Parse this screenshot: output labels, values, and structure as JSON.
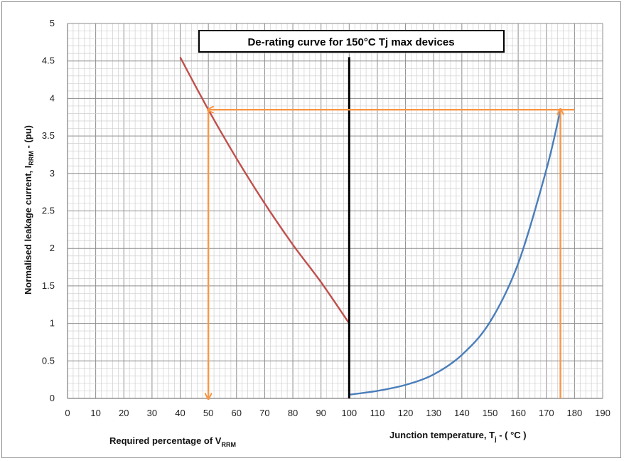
{
  "chart_data": {
    "type": "line",
    "title": "De-rating curve for 150°C Tj max devices",
    "ylabel": "Normalised leakage current, I",
    "ylabel_sub": "RRM",
    "ylabel_tail": " - (pu)",
    "xlabel_left": "Required percentage of V",
    "xlabel_left_sub": "RRM",
    "xlabel_right": "Junction temperature, T",
    "xlabel_right_sub": "j",
    "xlabel_right_tail": " - ( °C )",
    "xlim": [
      0,
      190
    ],
    "ylim": [
      0,
      5
    ],
    "x_ticks": [
      "0",
      "10",
      "20",
      "30",
      "40",
      "50",
      "60",
      "70",
      "80",
      "90",
      "100",
      "110",
      "120",
      "130",
      "140",
      "150",
      "160",
      "170",
      "180",
      "190"
    ],
    "y_ticks": [
      "0",
      "0.5",
      "1",
      "1.5",
      "2",
      "2.5",
      "3",
      "3.5",
      "4",
      "4.5",
      "5"
    ],
    "grid": true,
    "series": [
      {
        "color": "#c0504d",
        "x": [
          40,
          50,
          60,
          70,
          80,
          90,
          100
        ],
        "y": [
          4.55,
          3.85,
          3.2,
          2.6,
          2.05,
          1.55,
          1.0
        ]
      },
      {
        "color": "#4a7ebb",
        "x": [
          100,
          110,
          120,
          130,
          140,
          150,
          160,
          170,
          175
        ],
        "y": [
          0.05,
          0.1,
          0.18,
          0.32,
          0.58,
          1.02,
          1.8,
          3.05,
          3.85
        ]
      }
    ],
    "divider": {
      "x": 100,
      "y": [
        0,
        4.55
      ],
      "color": "#000000"
    },
    "arrows": [
      {
        "from": [
          175,
          0
        ],
        "to": [
          175,
          3.85
        ],
        "color": "#f79646"
      },
      {
        "from": [
          180,
          3.85
        ],
        "to": [
          50,
          3.85
        ],
        "color": "#f79646"
      },
      {
        "from": [
          50,
          3.85
        ],
        "to": [
          50,
          0
        ],
        "color": "#f79646"
      }
    ]
  }
}
